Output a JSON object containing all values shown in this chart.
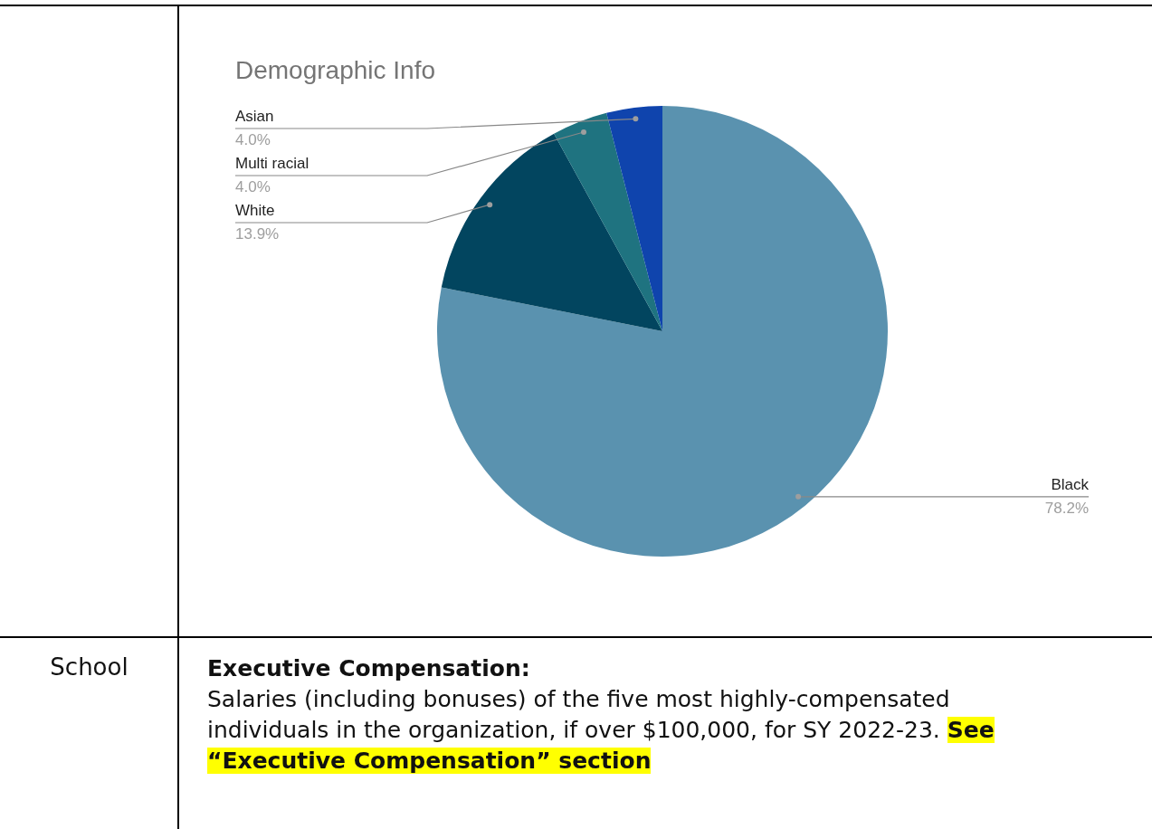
{
  "chart_data": {
    "type": "pie",
    "title": "Demographic Info",
    "categories": [
      "Black",
      "White",
      "Multi racial",
      "Asian"
    ],
    "values": [
      78.2,
      13.9,
      4.0,
      4.0
    ],
    "colors": [
      "#5a92af",
      "#02455f",
      "#1f7380",
      "#0f44ad"
    ],
    "value_labels": [
      "78.2%",
      "13.9%",
      "4.0%",
      "4.0%"
    ],
    "legend": false,
    "annotations": [
      "School",
      "Executive Compensation:",
      "Salaries (including bonuses) of the five most highly-compensated  individuals in the organization, if over $100,000, for SY 2022-23.",
      "See “Executive Compensation” section"
    ]
  }
}
